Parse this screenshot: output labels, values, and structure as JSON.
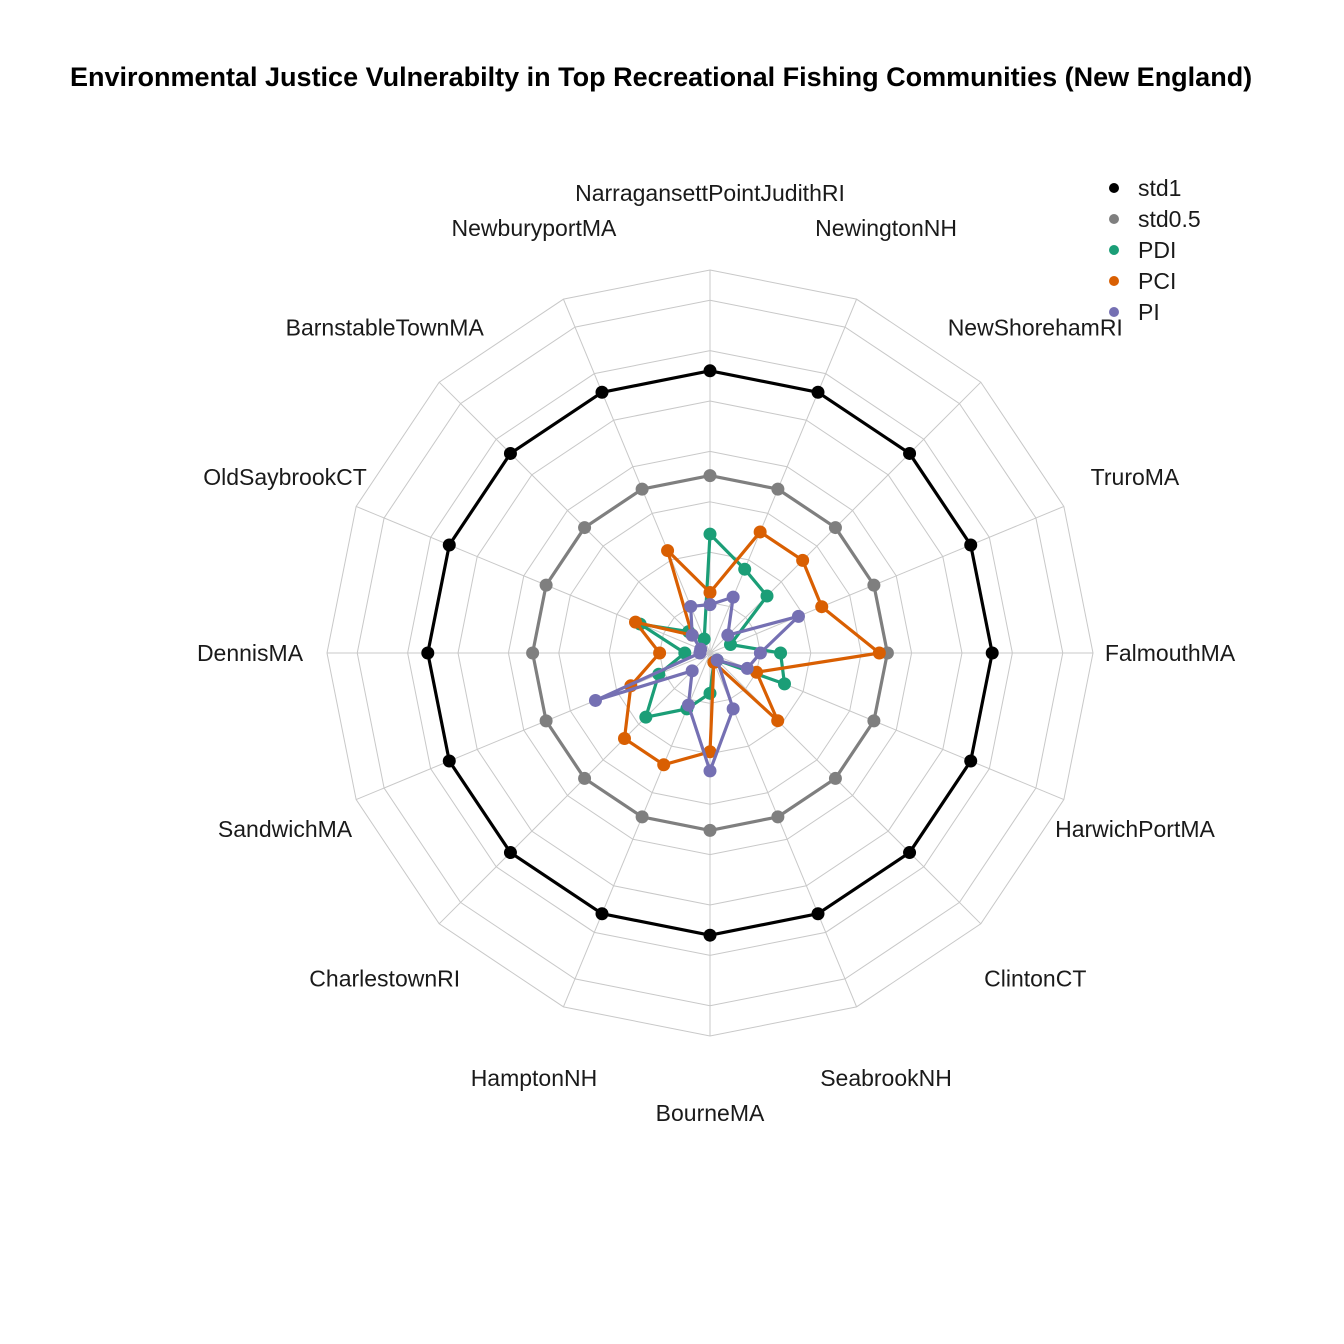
{
  "chart_data": {
    "type": "radar",
    "title": "Environmental Justice Vulnerabilty in Top Recreational Fishing Communities (New England)",
    "categories": [
      "NarragansettPointJudithRI",
      "NewingtonNH",
      "NewShorehamRI",
      "TruroMA",
      "FalmouthMA",
      "HarwichPortMA",
      "ClintonCT",
      "SeabrookNH",
      "BourneMA",
      "HamptonNH",
      "CharlestownRI",
      "SandwichMA",
      "DennisMA",
      "OldSaybrookCT",
      "BarnstableTownMA",
      "NewburyportMA"
    ],
    "rmax": 3.8,
    "grid_rings": [
      0.5,
      1,
      1.5,
      2,
      2.5,
      3,
      3.5
    ],
    "legend_position": "top-right",
    "series": [
      {
        "name": "std1",
        "color": "#000000",
        "values": [
          2.8,
          2.8,
          2.8,
          2.8,
          2.8,
          2.8,
          2.8,
          2.8,
          2.8,
          2.8,
          2.8,
          2.8,
          2.8,
          2.8,
          2.8,
          2.8
        ]
      },
      {
        "name": "std0.5",
        "color": "#7f7f7f",
        "values": [
          1.76,
          1.76,
          1.76,
          1.76,
          1.76,
          1.76,
          1.76,
          1.76,
          1.76,
          1.76,
          1.76,
          1.76,
          1.76,
          1.76,
          1.76,
          1.76
        ]
      },
      {
        "name": "PDI",
        "color": "#1b9e77",
        "values": [
          1.18,
          0.9,
          0.8,
          0.22,
          0.7,
          0.8,
          0.1,
          0.1,
          0.4,
          0.6,
          0.9,
          0.55,
          0.25,
          0.75,
          0.3,
          0.15
        ]
      },
      {
        "name": "PCI",
        "color": "#d95f02",
        "values": [
          0.6,
          1.3,
          1.3,
          1.2,
          1.68,
          0.5,
          0.95,
          0.1,
          0.98,
          1.2,
          1.2,
          0.85,
          0.5,
          0.8,
          0.25,
          1.1
        ]
      },
      {
        "name": "PI",
        "color": "#7570b3",
        "values": [
          0.48,
          0.6,
          0.25,
          0.95,
          0.5,
          0.4,
          0.1,
          0.6,
          1.17,
          0.56,
          0.25,
          1.23,
          0.1,
          0.1,
          0.25,
          0.5
        ]
      }
    ]
  }
}
